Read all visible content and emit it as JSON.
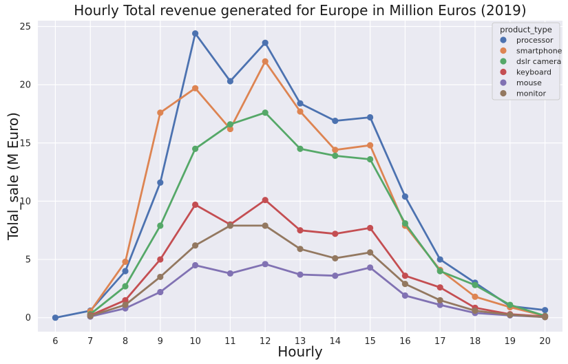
{
  "chart_data": {
    "type": "line",
    "title": "Hourly Total revenue generated for Europe in Million Euros (2019)",
    "xlabel": "Hourly",
    "ylabel": "Tolal_sale (M Euro)",
    "x": [
      6,
      7,
      8,
      9,
      10,
      11,
      12,
      13,
      14,
      15,
      16,
      17,
      18,
      19,
      20
    ],
    "ylim": [
      -1.2,
      25.5
    ],
    "yticks": [
      0,
      5,
      10,
      15,
      20,
      25
    ],
    "grid": true,
    "legend_title": "product_type",
    "legend_position": "top-right",
    "series": [
      {
        "name": "processor",
        "color": "#4c72b0",
        "values": [
          0.0,
          0.6,
          4.0,
          11.6,
          24.4,
          20.3,
          23.6,
          18.4,
          16.9,
          17.2,
          10.4,
          5.0,
          3.0,
          1.0,
          0.65
        ]
      },
      {
        "name": "smartphone",
        "color": "#dd8452",
        "values": [
          null,
          0.55,
          4.8,
          17.6,
          19.7,
          16.2,
          22.0,
          17.7,
          14.4,
          14.8,
          7.9,
          4.1,
          1.8,
          0.9,
          0.15
        ]
      },
      {
        "name": "dslr camera",
        "color": "#55a868",
        "values": [
          null,
          0.3,
          2.7,
          7.9,
          14.5,
          16.6,
          17.6,
          14.5,
          13.9,
          13.6,
          8.1,
          4.0,
          2.8,
          1.1,
          0.15
        ]
      },
      {
        "name": "keyboard",
        "color": "#c44e52",
        "values": [
          null,
          0.2,
          1.5,
          5.0,
          9.7,
          8.0,
          10.1,
          7.5,
          7.2,
          7.7,
          3.6,
          2.6,
          0.85,
          0.3,
          0.1
        ]
      },
      {
        "name": "mouse",
        "color": "#8172b3",
        "values": [
          null,
          0.1,
          0.8,
          2.2,
          4.5,
          3.8,
          4.6,
          3.7,
          3.6,
          4.3,
          1.9,
          1.1,
          0.4,
          0.2,
          0.05
        ]
      },
      {
        "name": "monitor",
        "color": "#937860",
        "values": [
          null,
          0.15,
          1.1,
          3.5,
          6.2,
          7.9,
          7.9,
          5.9,
          5.1,
          5.6,
          2.9,
          1.5,
          0.6,
          0.25,
          0.05
        ]
      }
    ]
  }
}
